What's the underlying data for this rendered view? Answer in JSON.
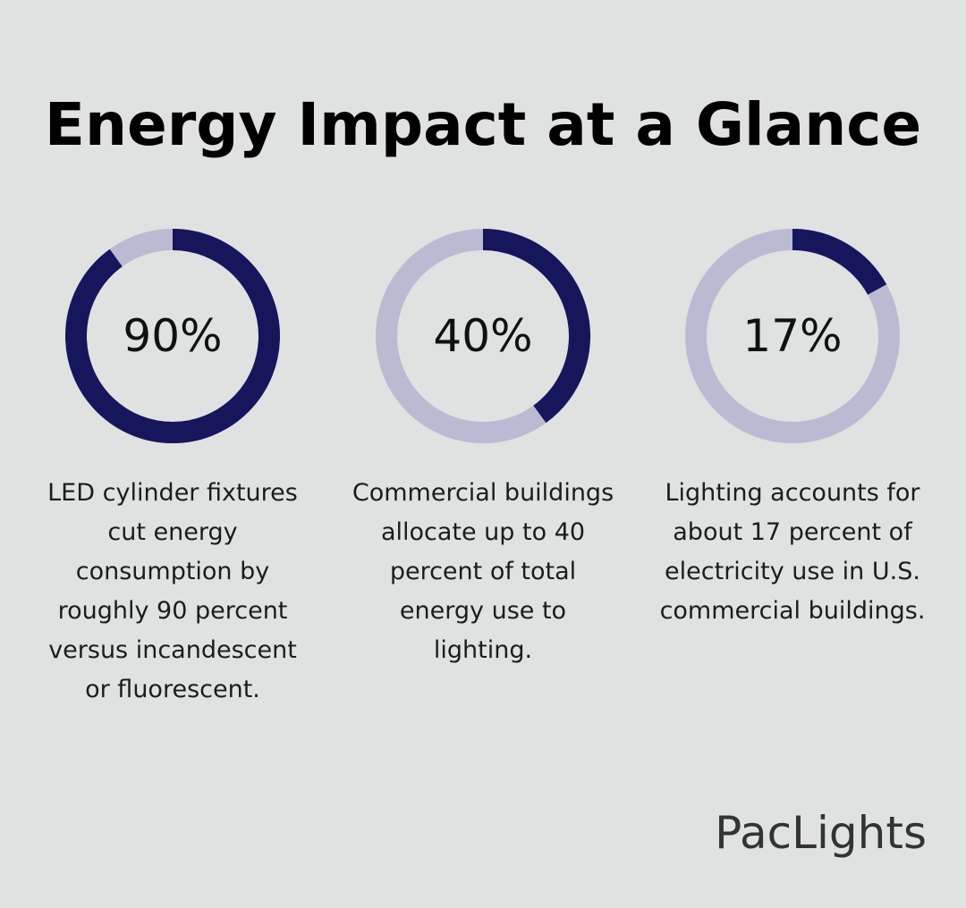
{
  "page": {
    "title": "Energy Impact at a Glance",
    "brand": "PacLights"
  },
  "colors": {
    "background": "#e0e2e1",
    "filled": "#16165c",
    "track": "#babbd2"
  },
  "chart_data": {
    "type": "pie",
    "title": "Energy Impact at a Glance",
    "items": [
      {
        "value": 90,
        "label": "90%",
        "caption": "LED cylinder fixtures cut energy consumption by roughly 90 percent versus incandescent or fluorescent."
      },
      {
        "value": 40,
        "label": "40%",
        "caption": "Commercial buildings allocate up to 40 percent of total energy use to lighting."
      },
      {
        "value": 17,
        "label": "17%",
        "caption": "Lighting accounts for about 17 percent of electricity use in U.S. commercial buildings."
      }
    ]
  }
}
